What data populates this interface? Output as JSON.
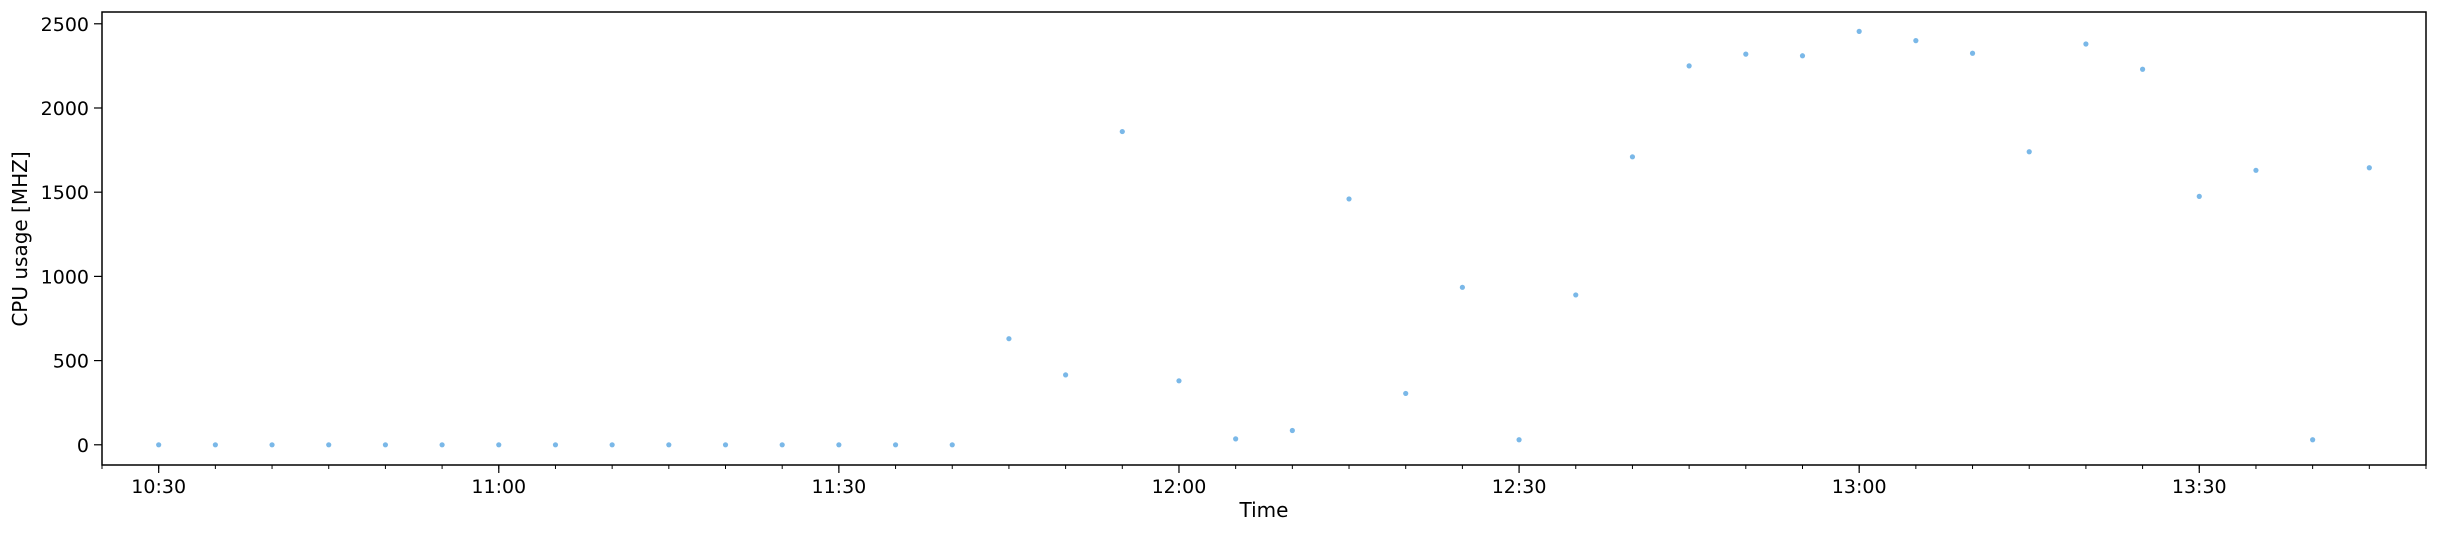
{
  "chart_data": {
    "type": "scatter",
    "title": "",
    "xlabel": "Time",
    "ylabel": "CPU usage [MHZ]",
    "x_unit": "time",
    "xlim": [
      "10:25",
      "13:50"
    ],
    "ylim": [
      -120,
      2570
    ],
    "x_ticks": [
      "10:30",
      "11:00",
      "11:30",
      "12:00",
      "12:30",
      "13:00",
      "13:30"
    ],
    "y_ticks": [
      0,
      500,
      1000,
      1500,
      2000,
      2500
    ],
    "grid": false,
    "legend": "none",
    "point_color": "#7ab8e8",
    "series": [
      {
        "x": [
          "10:30",
          "10:35",
          "10:40",
          "10:45",
          "10:50",
          "10:55",
          "11:00",
          "11:05",
          "11:10",
          "11:15",
          "11:20",
          "11:25",
          "11:30",
          "11:35",
          "11:40",
          "11:45",
          "11:50",
          "11:55",
          "12:00",
          "12:05",
          "12:10",
          "12:15",
          "12:20",
          "12:25",
          "12:30",
          "12:35",
          "12:40",
          "12:45",
          "12:50",
          "12:55",
          "13:00",
          "13:05",
          "13:10",
          "13:15",
          "13:20",
          "13:25",
          "13:30",
          "13:35",
          "13:40",
          "13:45"
        ],
        "y": [
          0,
          0,
          0,
          0,
          0,
          0,
          0,
          0,
          0,
          0,
          0,
          0,
          0,
          0,
          0,
          630,
          415,
          1860,
          380,
          35,
          85,
          1460,
          305,
          935,
          30,
          890,
          1710,
          2250,
          2320,
          2310,
          2455,
          2400,
          2325,
          1740,
          2380,
          2230,
          1475,
          1630,
          30,
          1645
        ]
      }
    ]
  }
}
